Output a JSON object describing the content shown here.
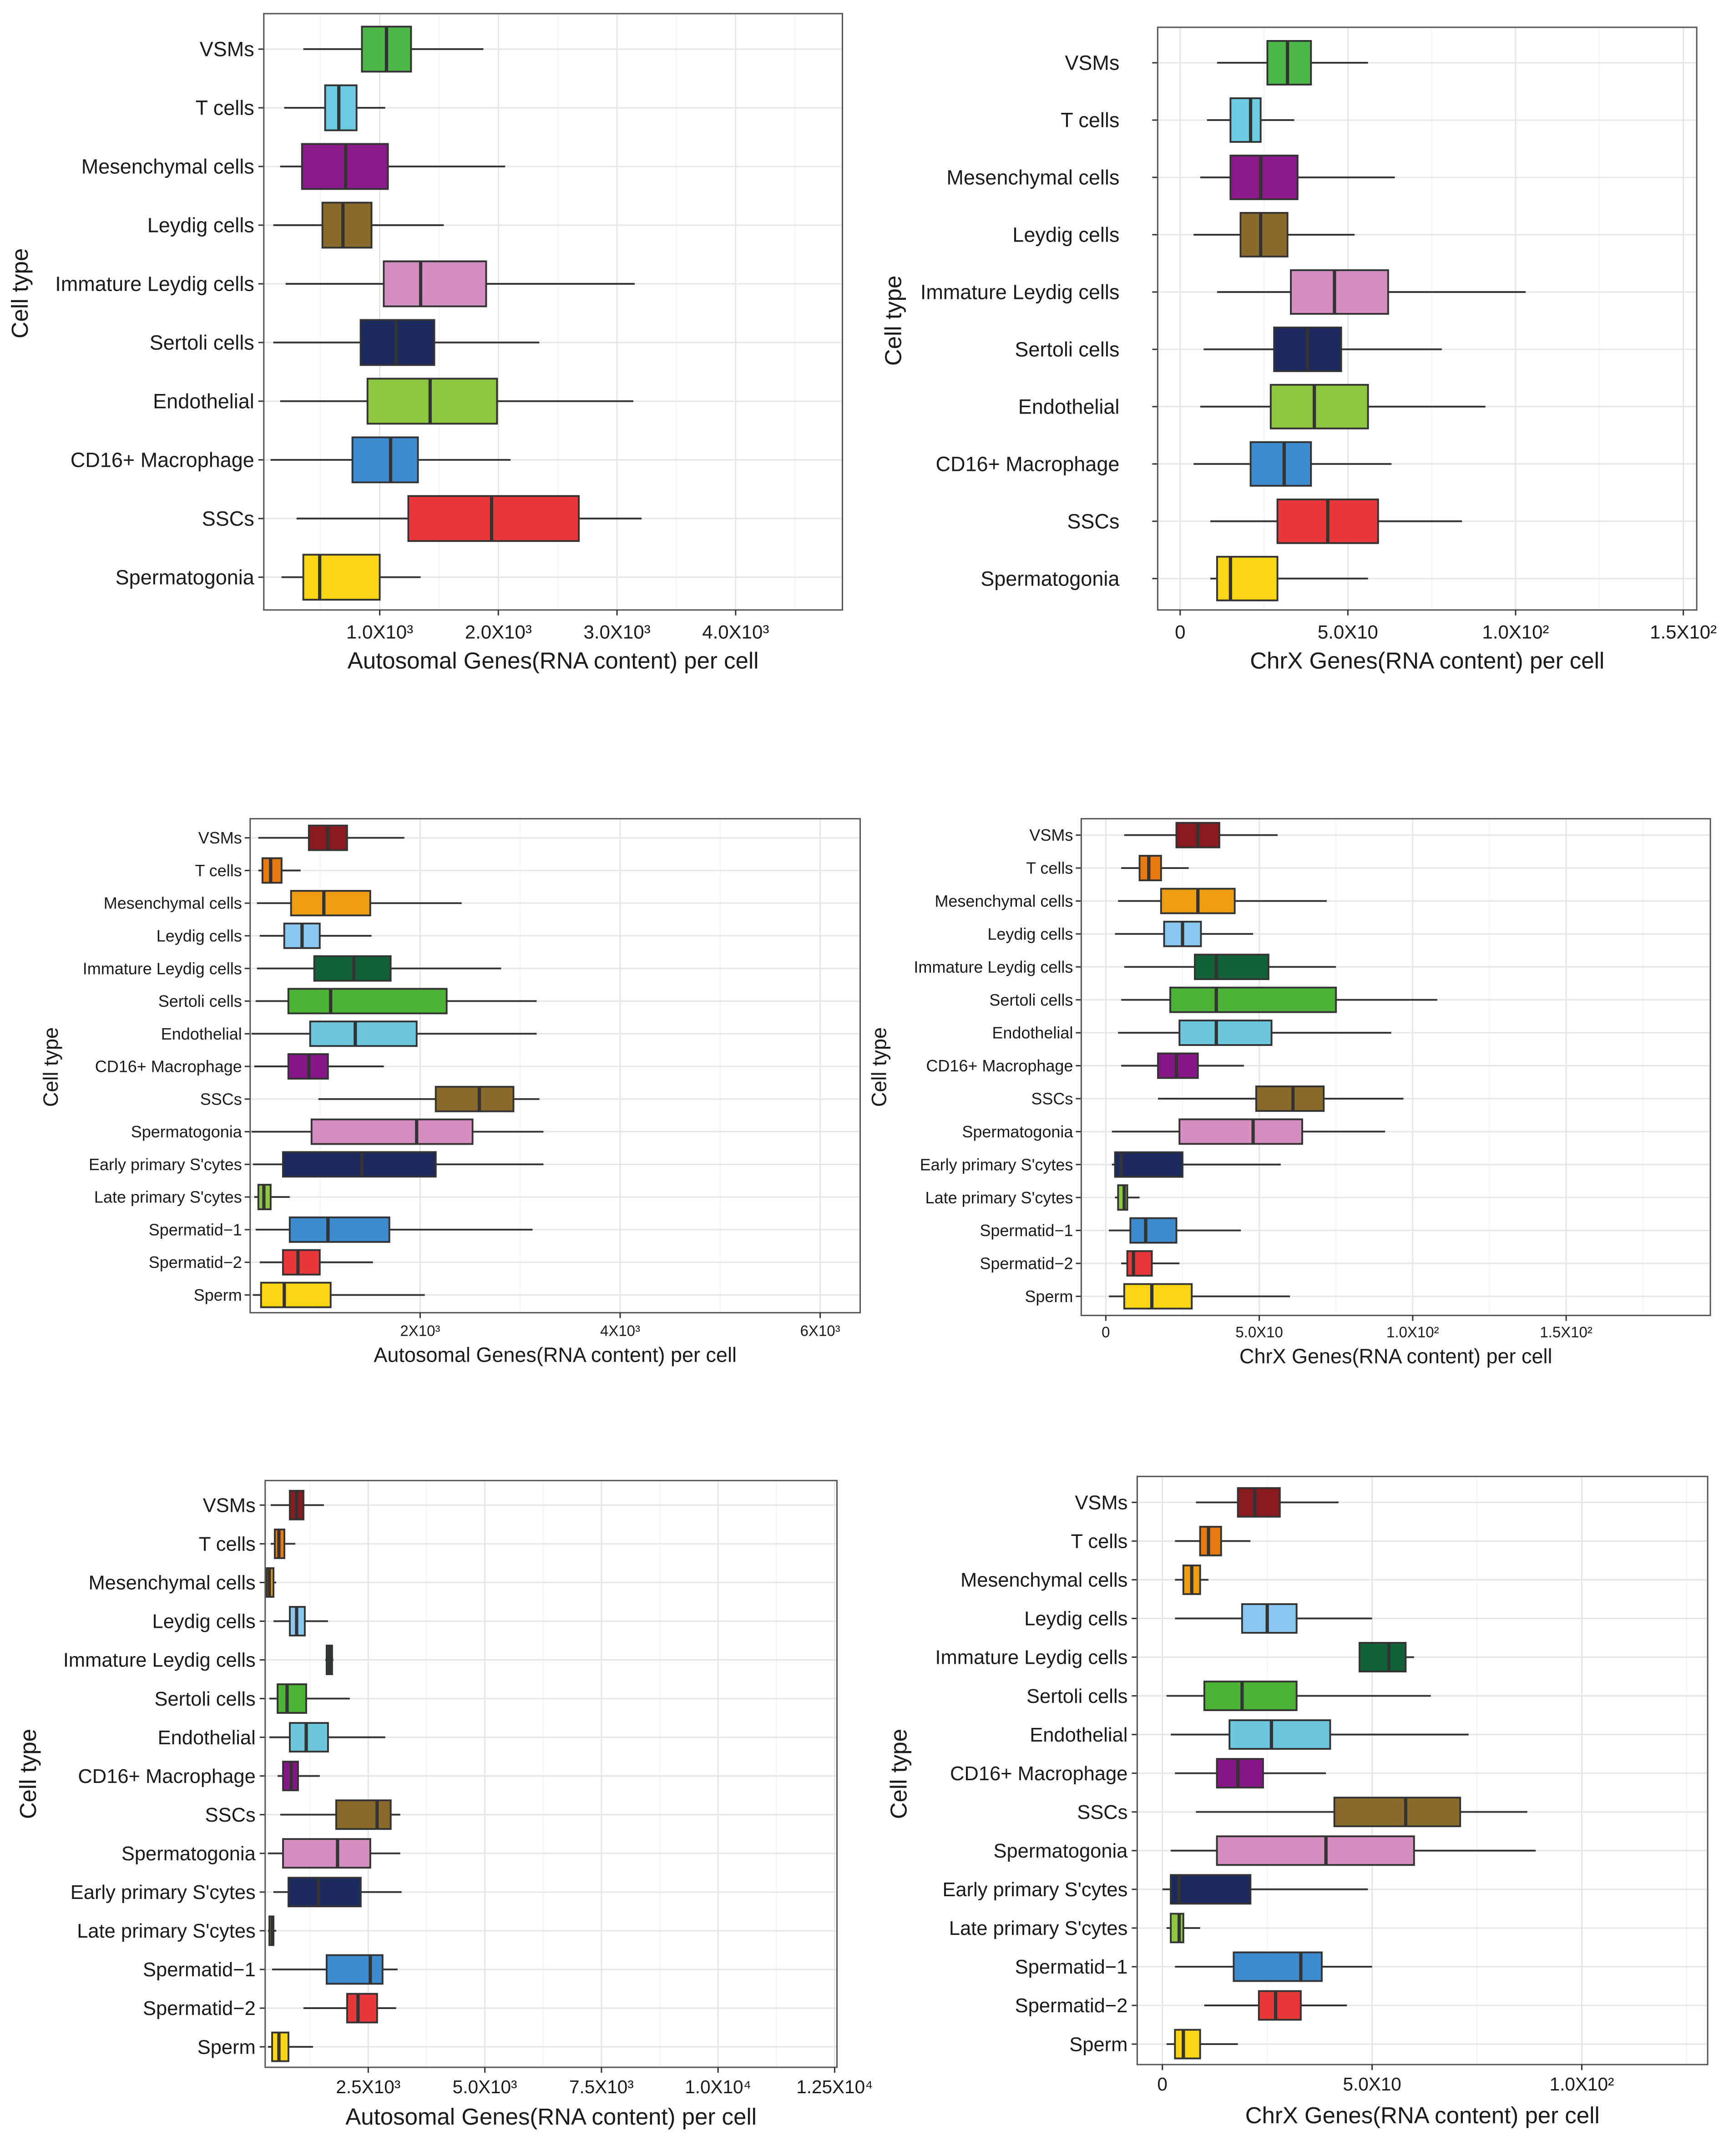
{
  "colors": {
    "top": {
      "VSMs": "#4db848",
      "T cells": "#6ccbe3",
      "Mesenchymal cells": "#8c1a8c",
      "Leydig cells": "#8b6b2b",
      "Immature Leydig cells": "#d48fc0",
      "Sertoli cells": "#1c2a5f",
      "Endothelial": "#8dc63f",
      "CD16+ Macrophage": "#3f8bd0",
      "SSCs": "#e8383a",
      "Spermatogonia": "#fbd514"
    },
    "full": {
      "VSMs": "#8b1a20",
      "T cells": "#e87a12",
      "Mesenchymal cells": "#ee9d12",
      "Leydig cells": "#88c8f0",
      "Immature Leydig cells": "#136136",
      "Sertoli cells": "#4db337",
      "Endothelial": "#6bc6de",
      "CD16+ Macrophage": "#861585",
      "SSCs": "#8b6b2b",
      "Spermatogonia": "#d48fc0",
      "Early primary S'cytes": "#1c2a5f",
      "Late primary S'cytes": "#8dc63f",
      "Spermatid−1": "#3f8bd0",
      "Spermatid−2": "#e8383a",
      "Sperm": "#fbd514"
    }
  },
  "chart_data": [
    {
      "type": "boxplot",
      "title": "",
      "palette": "top",
      "xlabel": "Autosomal Genes(RNA content) per cell",
      "ylabel": "Cell type",
      "xlim": [
        23,
        4900
      ],
      "grid": true,
      "xticks": [
        1000,
        2000,
        3000,
        4000
      ],
      "xtick_labels": [
        "1.0X10³",
        "2.0X10³",
        "3.0X10³",
        "4.0X10³"
      ],
      "categories": [
        "VSMs",
        "T cells",
        "Mesenchymal cells",
        "Leydig cells",
        "Immature Leydig cells",
        "Sertoli cells",
        "Endothelial",
        "CD16+ Macrophage",
        "SSCs",
        "Spermatogonia"
      ],
      "stats_order": [
        "whisker_low",
        "q1",
        "median",
        "q3",
        "whisker_high"
      ],
      "values": [
        [
          356,
          850,
          1057,
          1264,
          1874
        ],
        [
          195,
          540,
          655,
          805,
          1046
        ],
        [
          161,
          345,
          713,
          1069,
          2057
        ],
        [
          103,
          517,
          690,
          931,
          1540
        ],
        [
          207,
          1034,
          1345,
          1897,
          3149
        ],
        [
          103,
          839,
          1138,
          1460,
          2345
        ],
        [
          161,
          897,
          1425,
          1989,
          3138
        ],
        [
          80,
          770,
          1092,
          1322,
          2103
        ],
        [
          299,
          1241,
          1943,
          2678,
          3207
        ],
        [
          172,
          356,
          494,
          1000,
          1345
        ]
      ]
    },
    {
      "type": "boxplot",
      "title": "",
      "palette": "top",
      "xlabel": "ChrX Genes(RNA content) per cell",
      "ylabel": "Cell type",
      "xlim": [
        -6.7,
        154
      ],
      "grid": true,
      "xticks": [
        0,
        50,
        100,
        150
      ],
      "xtick_labels": [
        "0",
        "5.0X10",
        "1.0X10²",
        "1.5X10²"
      ],
      "categories": [
        "VSMs",
        "T cells",
        "Mesenchymal cells",
        "Leydig cells",
        "Immature Leydig cells",
        "Sertoli cells",
        "Endothelial",
        "CD16+ Macrophage",
        "SSCs",
        "Spermatogonia"
      ],
      "stats_order": [
        "whisker_low",
        "q1",
        "median",
        "q3",
        "whisker_high"
      ],
      "values": [
        [
          11,
          26,
          32,
          39,
          56
        ],
        [
          8,
          15,
          21,
          24,
          34
        ],
        [
          6,
          15,
          24,
          35,
          64
        ],
        [
          4,
          18,
          24,
          32,
          52
        ],
        [
          11,
          33,
          46,
          62,
          103
        ],
        [
          7,
          28,
          38,
          48,
          78
        ],
        [
          6,
          27,
          40,
          56,
          91
        ],
        [
          4,
          21,
          31,
          39,
          63
        ],
        [
          9,
          29,
          44,
          59,
          84
        ],
        [
          9,
          11,
          15,
          29,
          56
        ]
      ]
    },
    {
      "type": "boxplot",
      "title": "",
      "palette": "full",
      "xlabel": "Autosomal Genes(RNA content) per cell",
      "ylabel": "Cell type",
      "xlim": [
        300,
        6400
      ],
      "grid": true,
      "xticks": [
        2000,
        4000,
        6000
      ],
      "xtick_labels": [
        "2X10³",
        "4X10³",
        "6X10³"
      ],
      "categories": [
        "VSMs",
        "T cells",
        "Mesenchymal cells",
        "Leydig cells",
        "Immature Leydig cells",
        "Sertoli cells",
        "Endothelial",
        "CD16+ Macrophage",
        "SSCs",
        "Spermatogonia",
        "Early primary S'cytes",
        "Late primary S'cytes",
        "Spermatid−1",
        "Spermatid−2",
        "Sperm"
      ],
      "stats_order": [
        "whisker_low",
        "q1",
        "median",
        "q3",
        "whisker_high"
      ],
      "values": [
        [
          382,
          887,
          1078,
          1269,
          1842
        ],
        [
          382,
          423,
          505,
          614,
          805
        ],
        [
          368,
          709,
          1037,
          1501,
          2415
        ],
        [
          396,
          641,
          819,
          996,
          1514
        ],
        [
          368,
          941,
          1337,
          1705,
          2810
        ],
        [
          355,
          682,
          1105,
          2265,
          3165
        ],
        [
          314,
          900,
          1351,
          1965,
          3165
        ],
        [
          341,
          682,
          887,
          1078,
          1637
        ],
        [
          982,
          2156,
          2592,
          2933,
          3192
        ],
        [
          314,
          914,
          1965,
          2524,
          3233
        ],
        [
          327,
          628,
          1419,
          2156,
          3233
        ],
        [
          341,
          382,
          437,
          505,
          696
        ],
        [
          355,
          696,
          1078,
          1692,
          3124
        ],
        [
          396,
          628,
          778,
          996,
          1528
        ],
        [
          327,
          409,
          641,
          1105,
          2046
        ]
      ]
    },
    {
      "type": "boxplot",
      "title": "",
      "palette": "full",
      "xlabel": "ChrX Genes(RNA content) per cell",
      "ylabel": "Cell type",
      "xlim": [
        -8,
        197
      ],
      "grid": true,
      "xticks": [
        0,
        50,
        100,
        150
      ],
      "xtick_labels": [
        "0",
        "5.0X10",
        "1.0X10²",
        "1.5X10²"
      ],
      "categories": [
        "VSMs",
        "T cells",
        "Mesenchymal cells",
        "Leydig cells",
        "Immature Leydig cells",
        "Sertoli cells",
        "Endothelial",
        "CD16+ Macrophage",
        "SSCs",
        "Spermatogonia",
        "Early primary S'cytes",
        "Late primary S'cytes",
        "Spermatid−1",
        "Spermatid−2",
        "Sperm"
      ],
      "stats_order": [
        "whisker_low",
        "q1",
        "median",
        "q3",
        "whisker_high"
      ],
      "values": [
        [
          6,
          23,
          30,
          37,
          56
        ],
        [
          5,
          11,
          14,
          18,
          27
        ],
        [
          4,
          18,
          30,
          42,
          72
        ],
        [
          3,
          19,
          25,
          31,
          48
        ],
        [
          6,
          29,
          36,
          53,
          75
        ],
        [
          5,
          21,
          36,
          75,
          108
        ],
        [
          4,
          24,
          36,
          54,
          93
        ],
        [
          5,
          17,
          23,
          30,
          45
        ],
        [
          17,
          49,
          61,
          71,
          97
        ],
        [
          2,
          24,
          48,
          64,
          91
        ],
        [
          2,
          3,
          5,
          25,
          57
        ],
        [
          3,
          4,
          6,
          7,
          11
        ],
        [
          1,
          8,
          13,
          23,
          44
        ],
        [
          5,
          7,
          9,
          15,
          24
        ],
        [
          1,
          6,
          15,
          28,
          60
        ]
      ]
    },
    {
      "type": "boxplot",
      "title": "",
      "palette": "full",
      "xlabel": "Autosomal Genes(RNA content) per cell",
      "ylabel": "Cell type",
      "xlim": [
        290,
        12550
      ],
      "grid": true,
      "xticks": [
        2500,
        5000,
        7500,
        10000,
        12500
      ],
      "xtick_labels": [
        "2.5X10³",
        "5.0X10³",
        "7.5X10³",
        "1.0X10⁴",
        "1.25X10⁴"
      ],
      "categories": [
        "VSMs",
        "T cells",
        "Mesenchymal cells",
        "Leydig cells",
        "Immature Leydig cells",
        "Sertoli cells",
        "Endothelial",
        "CD16+ Macrophage",
        "SSCs",
        "Spermatogonia",
        "Early primary S'cytes",
        "Late primary S'cytes",
        "Spermatid−1",
        "Spermatid−2",
        "Sperm"
      ],
      "stats_order": [
        "whisker_low",
        "q1",
        "median",
        "q3",
        "whisker_high"
      ],
      "values": [
        [
          409,
          819,
          965,
          1111,
          1550
        ],
        [
          409,
          497,
          585,
          702,
          936
        ],
        [
          322,
          322,
          380,
          468,
          526
        ],
        [
          468,
          819,
          965,
          1140,
          1637
        ],
        [
          1579,
          1608,
          1667,
          1725,
          1754
        ],
        [
          380,
          556,
          760,
          1170,
          2105
        ],
        [
          380,
          819,
          1170,
          1637,
          2865
        ],
        [
          556,
          673,
          848,
          994,
          1462
        ],
        [
          614,
          1813,
          2690,
          2982,
          3187
        ],
        [
          351,
          673,
          1842,
          2544,
          3187
        ],
        [
          468,
          789,
          1433,
          2339,
          3216
        ],
        [
          351,
          380,
          439,
          468,
          526
        ],
        [
          439,
          1608,
          2544,
          2807,
          3129
        ],
        [
          1111,
          2047,
          2281,
          2690,
          3099
        ],
        [
          351,
          439,
          585,
          789,
          1316
        ]
      ]
    },
    {
      "type": "boxplot",
      "title": "",
      "palette": "full",
      "xlabel": "ChrX Genes(RNA content) per cell",
      "ylabel": "Cell type",
      "xlim": [
        -6,
        130
      ],
      "grid": true,
      "xticks": [
        0,
        50,
        100
      ],
      "xtick_labels": [
        "0",
        "5.0X10",
        "1.0X10²"
      ],
      "categories": [
        "VSMs",
        "T cells",
        "Mesenchymal cells",
        "Leydig cells",
        "Immature Leydig cells",
        "Sertoli cells",
        "Endothelial",
        "CD16+ Macrophage",
        "SSCs",
        "Spermatogonia",
        "Early primary S'cytes",
        "Late primary S'cytes",
        "Spermatid−1",
        "Spermatid−2",
        "Sperm"
      ],
      "stats_order": [
        "whisker_low",
        "q1",
        "median",
        "q3",
        "whisker_high"
      ],
      "values": [
        [
          8,
          18,
          22,
          28,
          42
        ],
        [
          3,
          9,
          11,
          14,
          21
        ],
        [
          3,
          5,
          7,
          9,
          11
        ],
        [
          3,
          19,
          25,
          32,
          50
        ],
        [
          47,
          47,
          54,
          58,
          60
        ],
        [
          1,
          10,
          19,
          32,
          64
        ],
        [
          2,
          16,
          26,
          40,
          73
        ],
        [
          3,
          13,
          18,
          24,
          39
        ],
        [
          8,
          41,
          58,
          71,
          87
        ],
        [
          2,
          13,
          39,
          60,
          89
        ],
        [
          0,
          2,
          4,
          21,
          49
        ],
        [
          1,
          2,
          4,
          5,
          9
        ],
        [
          3,
          17,
          33,
          38,
          50
        ],
        [
          10,
          23,
          27,
          33,
          44
        ],
        [
          1,
          3,
          5,
          9,
          18
        ]
      ]
    }
  ]
}
